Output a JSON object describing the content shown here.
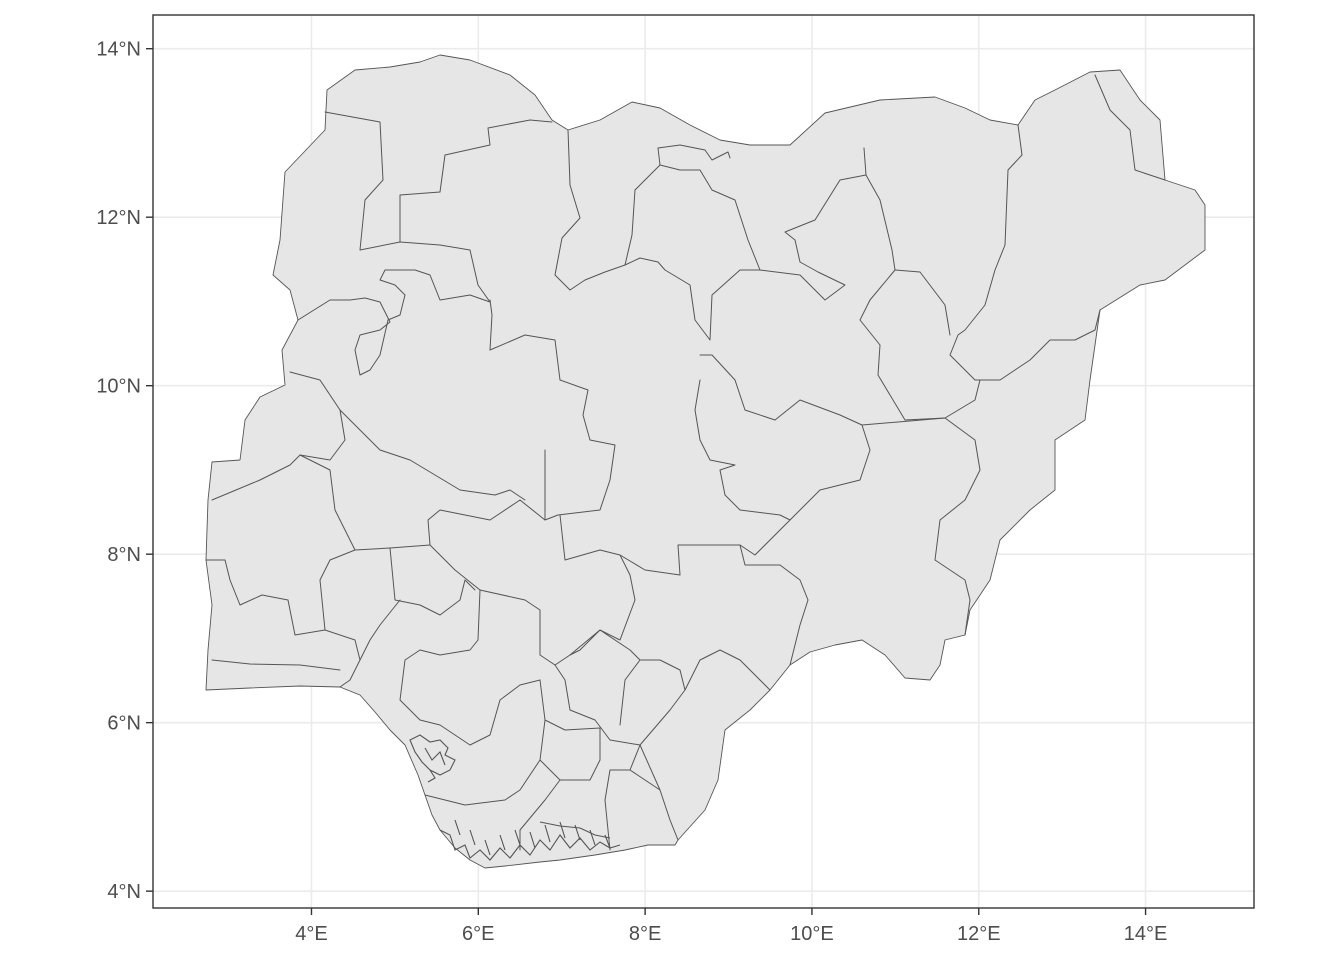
{
  "chart_data": {
    "type": "map",
    "title": "",
    "xlabel": "",
    "ylabel": "",
    "xlim": [
      2.1,
      15.3
    ],
    "ylim": [
      3.8,
      14.4
    ],
    "grid": true,
    "x_ticks": [
      {
        "value": 4,
        "label": "4°E"
      },
      {
        "value": 6,
        "label": "6°E"
      },
      {
        "value": 8,
        "label": "8°E"
      },
      {
        "value": 10,
        "label": "10°E"
      },
      {
        "value": 12,
        "label": "12°E"
      },
      {
        "value": 14,
        "label": "14°E"
      }
    ],
    "y_ticks": [
      {
        "value": 4,
        "label": "4°N"
      },
      {
        "value": 6,
        "label": "6°N"
      },
      {
        "value": 8,
        "label": "8°N"
      },
      {
        "value": 10,
        "label": "10°N"
      },
      {
        "value": 12,
        "label": "12°N"
      },
      {
        "value": 14,
        "label": "14°N"
      }
    ],
    "fill_color": "#e6e6e6",
    "border_color": "#555555",
    "panel_border_color": "#333333",
    "grid_color": "#ebebeb",
    "background_color": "#ffffff"
  }
}
